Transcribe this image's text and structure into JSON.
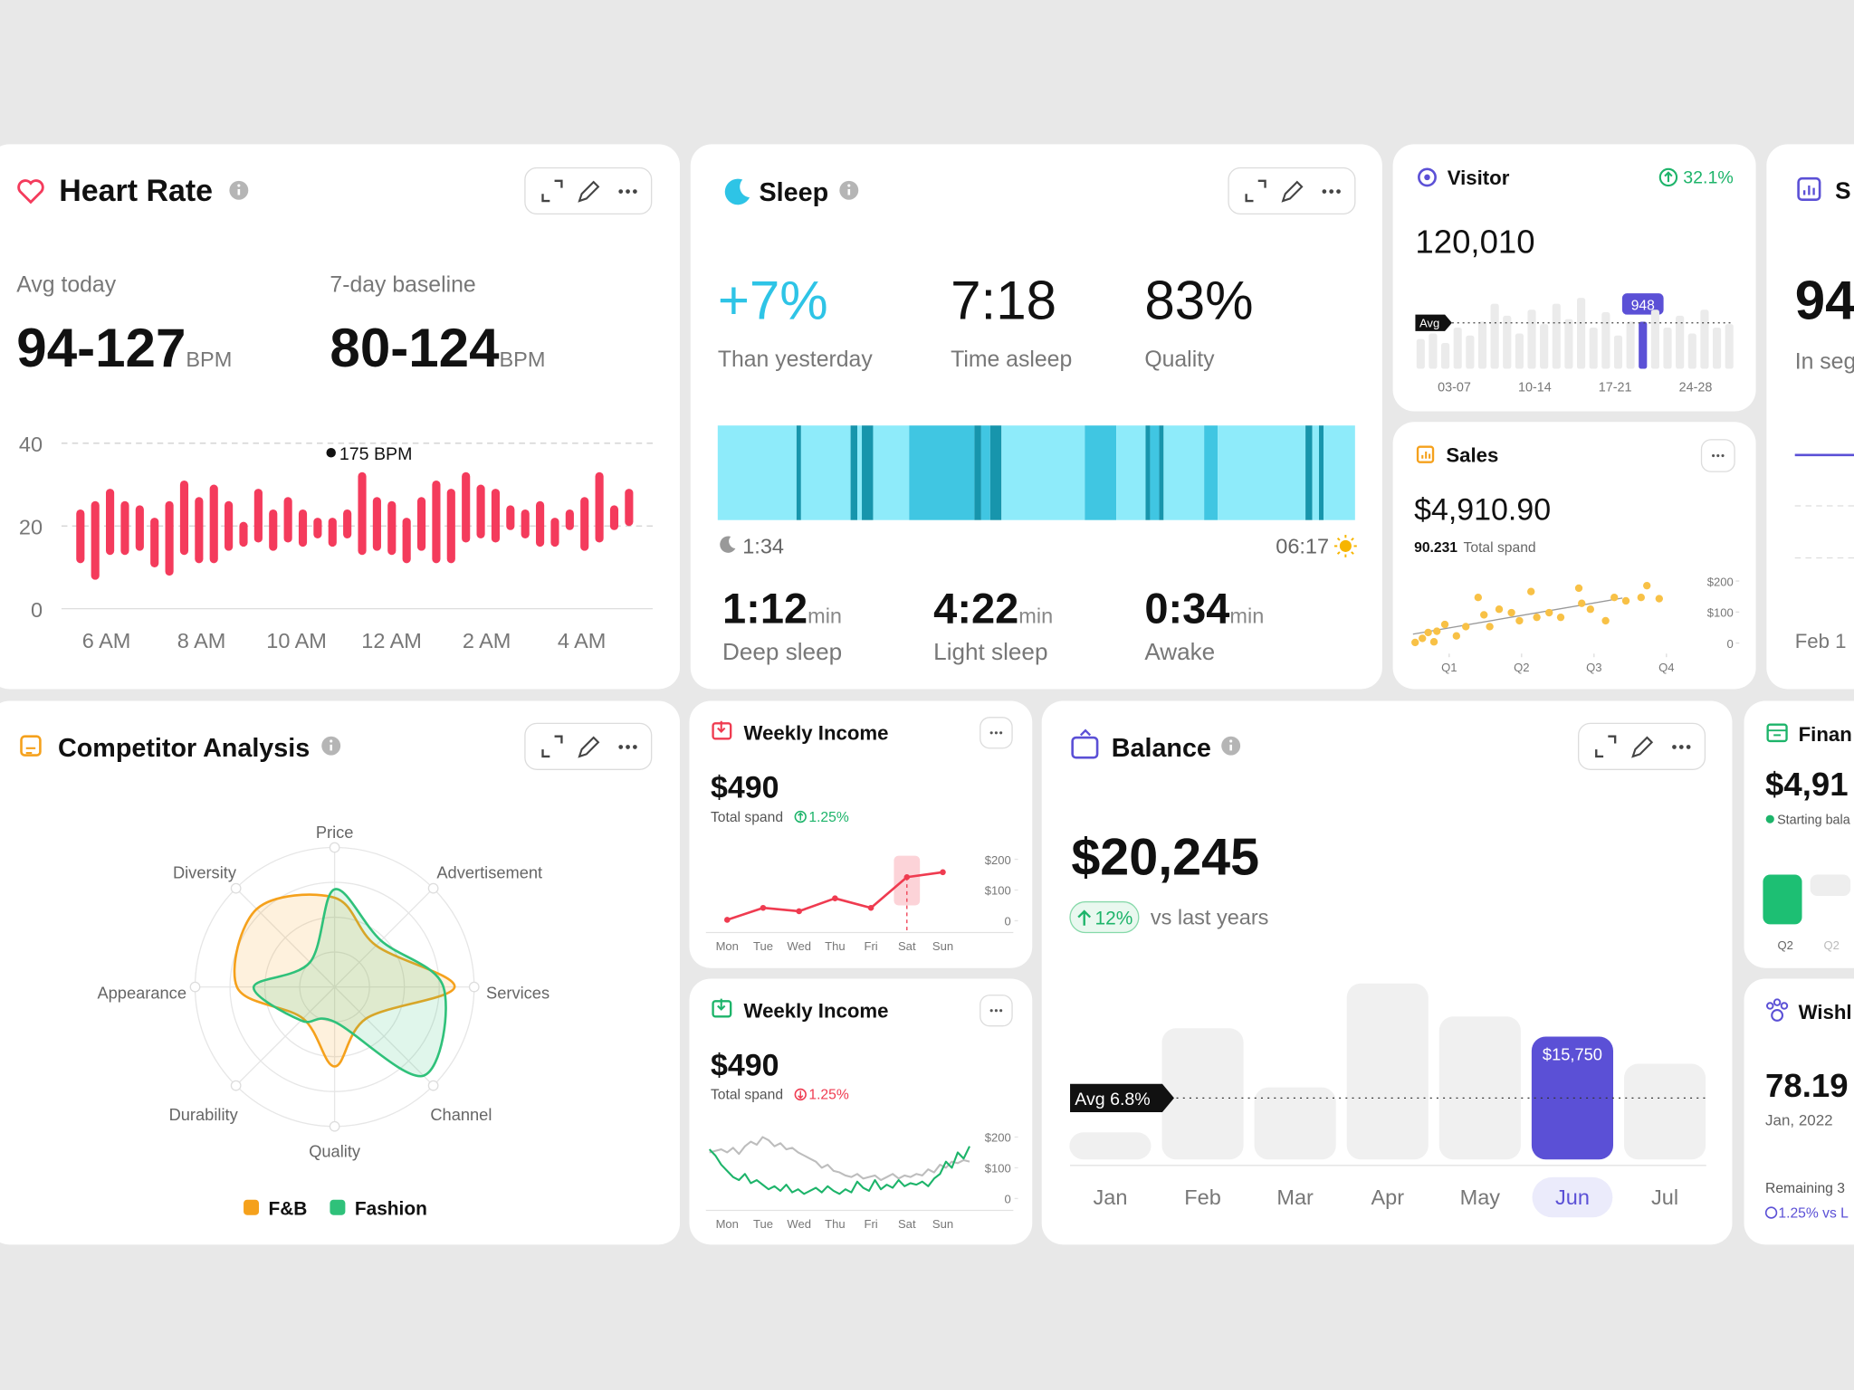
{
  "heart_rate": {
    "title": "Heart Rate",
    "stats": [
      {
        "label": "Avg today",
        "value": "94-127",
        "unit": "BPM"
      },
      {
        "label": "7-day baseline",
        "value": "80-124",
        "unit": "BPM"
      }
    ],
    "chart": {
      "type": "range_bar",
      "color": "#f43b5c",
      "annotation": "175 BPM",
      "x_labels": [
        "6 AM",
        "8 AM",
        "10 AM",
        "12 AM",
        "2 AM",
        "4 AM"
      ],
      "low": [
        11,
        7,
        13,
        13,
        14,
        10,
        8,
        13,
        11,
        11,
        14,
        15,
        16,
        14,
        16,
        15,
        17,
        15,
        17,
        13,
        14,
        13,
        11,
        14,
        11,
        11,
        16,
        17,
        16,
        19,
        17,
        15,
        15,
        19,
        14,
        16,
        19,
        20
      ],
      "high": [
        24,
        26,
        29,
        26,
        25,
        22,
        26,
        31,
        27,
        30,
        26,
        21,
        29,
        24,
        27,
        24,
        22,
        22,
        24,
        33,
        27,
        26,
        22,
        27,
        31,
        29,
        33,
        30,
        29,
        25,
        24,
        26,
        22,
        24,
        27,
        33,
        25,
        29
      ],
      "ylim": [
        0,
        40
      ],
      "yticks": [
        0,
        20,
        40
      ]
    }
  },
  "sleep": {
    "title": "Sleep",
    "stats": [
      {
        "value": "+7%",
        "label": "Than yesterday"
      },
      {
        "value": "7:18",
        "label": "Time asleep"
      },
      {
        "value": "83%",
        "label": "Quality"
      }
    ],
    "stages": [
      {
        "value": "1:12",
        "unit": "min",
        "label": "Deep sleep",
        "color": "#40c6e2"
      },
      {
        "value": "4:22",
        "unit": "min",
        "label": "Light sleep",
        "color": "#8eebfa"
      },
      {
        "value": "0:34",
        "unit": "min",
        "label": "Awake",
        "color": "#1795ac"
      }
    ],
    "chart": {
      "type": "hypnogram",
      "start": "1:34",
      "end": "06:17",
      "xlim": [
        0,
        283
      ],
      "segments": [
        {
          "stage": "Light sleep",
          "from": 0,
          "to": 35
        },
        {
          "stage": "Awake",
          "from": 35,
          "to": 37
        },
        {
          "stage": "Light sleep",
          "from": 37,
          "to": 59
        },
        {
          "stage": "Awake",
          "from": 59,
          "to": 62
        },
        {
          "stage": "Light sleep",
          "from": 62,
          "to": 64
        },
        {
          "stage": "Awake",
          "from": 64,
          "to": 69
        },
        {
          "stage": "Light sleep",
          "from": 69,
          "to": 85
        },
        {
          "stage": "Deep sleep",
          "from": 85,
          "to": 114
        },
        {
          "stage": "Awake",
          "from": 114,
          "to": 117
        },
        {
          "stage": "Deep sleep",
          "from": 117,
          "to": 121
        },
        {
          "stage": "Awake",
          "from": 121,
          "to": 126
        },
        {
          "stage": "Light sleep",
          "from": 126,
          "to": 163
        },
        {
          "stage": "Deep sleep",
          "from": 163,
          "to": 177
        },
        {
          "stage": "Light sleep",
          "from": 177,
          "to": 190
        },
        {
          "stage": "Awake",
          "from": 190,
          "to": 192
        },
        {
          "stage": "Deep sleep",
          "from": 192,
          "to": 196
        },
        {
          "stage": "Awake",
          "from": 196,
          "to": 198
        },
        {
          "stage": "Light sleep",
          "from": 198,
          "to": 216
        },
        {
          "stage": "Deep sleep",
          "from": 216,
          "to": 222
        },
        {
          "stage": "Light sleep",
          "from": 222,
          "to": 261
        },
        {
          "stage": "Awake",
          "from": 261,
          "to": 264
        },
        {
          "stage": "Light sleep",
          "from": 264,
          "to": 267
        },
        {
          "stage": "Awake",
          "from": 267,
          "to": 269
        },
        {
          "stage": "Light sleep",
          "from": 269,
          "to": 283
        }
      ]
    }
  },
  "visitor": {
    "title": "Visitor",
    "change": "32.1%",
    "value": "120,010",
    "chart": {
      "type": "bar",
      "color": "#ebebeb",
      "highlight_color": "#5b50d6",
      "highlight": 18,
      "avg": 925,
      "avg_label": "Avg",
      "x_labels": [
        "03-07",
        "10-14",
        "17-21",
        "24-28"
      ],
      "values": [
        600,
        710,
        520,
        830,
        670,
        950,
        1310,
        1070,
        710,
        1190,
        900,
        1310,
        1000,
        1430,
        830,
        1140,
        670,
        950,
        948,
        1190,
        830,
        1070,
        710,
        1190,
        830,
        900
      ],
      "ylim": [
        0,
        1500
      ]
    }
  },
  "sales": {
    "title": "Sales",
    "value": "$4,910.90",
    "sub_value": "90.231",
    "sub_label": "Total spand",
    "chart": {
      "type": "scatter",
      "color": "#f8c146",
      "x": [
        0.03,
        0.13,
        0.21,
        0.29,
        0.33,
        0.44,
        0.6,
        0.73,
        0.9,
        0.98,
        1.06,
        1.19,
        1.36,
        1.47,
        1.63,
        1.71,
        1.88,
        2.04,
        2.29,
        2.33,
        2.45,
        2.66,
        2.78,
        2.94,
        3.15,
        3.23,
        3.4
      ],
      "values": [
        2,
        15,
        34,
        4,
        38,
        60,
        23,
        53,
        147,
        91,
        53,
        109,
        98,
        72,
        166,
        83,
        98,
        83,
        177,
        128,
        109,
        72,
        147,
        136,
        147,
        185,
        143
      ],
      "xlim": [
        0,
        4
      ],
      "xticks": [
        {
          "value": 0.5,
          "label": "Q1"
        },
        {
          "value": 1.5,
          "label": "Q2"
        },
        {
          "value": 2.5,
          "label": "Q3"
        },
        {
          "value": 3.5,
          "label": "Q4"
        }
      ],
      "ylim": [
        -15,
        225
      ],
      "yticks": [
        {
          "value": 200,
          "label": "$200"
        },
        {
          "value": 100,
          "label": "$100"
        },
        0
      ]
    }
  },
  "competitor": {
    "title": "Competitor Analysis",
    "chart": {
      "type": "radar",
      "categories": [
        "Price",
        "Advertisement",
        "Services",
        "Channel",
        "Quality",
        "Durability",
        "Appearance",
        "Diversity"
      ],
      "rlim": [
        0,
        100
      ],
      "series": [
        {
          "name": "F&B",
          "color": "#f5a11c",
          "values": [
            64,
            42,
            86,
            32,
            57,
            32,
            70,
            79
          ]
        },
        {
          "name": "Fashion",
          "color": "#2fc17a",
          "values": [
            70,
            47,
            78,
            90,
            25,
            34,
            58,
            25
          ]
        }
      ]
    }
  },
  "weekly_income": [
    {
      "title": "Weekly Income",
      "value": "$490",
      "sub_label": "Total spand",
      "change": "1.25%",
      "trend": "up",
      "chart": {
        "type": "line",
        "categories": [
          "Mon",
          "Tue",
          "Wed",
          "Thu",
          "Fri",
          "Sat",
          "Sun"
        ],
        "highlight": 5,
        "ylim": [
          0,
          200
        ],
        "yticks": [
          {
            "value": 200,
            "label": "$200"
          },
          {
            "value": 100,
            "label": "$100"
          },
          0
        ],
        "series": [
          {
            "color": "#ef3b50",
            "values": [
              3,
              42,
              31,
              73,
              42,
              142,
              158
            ]
          }
        ]
      }
    },
    {
      "title": "Weekly Income",
      "value": "$490",
      "sub_label": "Total spand",
      "change": "1.25%",
      "trend": "down",
      "chart": {
        "type": "line",
        "categories": [
          "Mon",
          "Tue",
          "Wed",
          "Thu",
          "Fri",
          "Sat",
          "Sun"
        ],
        "ylim": [
          0,
          200
        ],
        "yticks": [
          {
            "value": 200,
            "label": "$200"
          },
          {
            "value": 100,
            "label": "$100"
          },
          0
        ],
        "series": [
          {
            "color": "#bdbdbd",
            "values": [
              150,
              155,
              160,
              150,
              165,
              145,
              170,
              185,
              175,
              200,
              190,
              170,
              180,
              160,
              165,
              150,
              140,
              130,
              120,
              100,
              110,
              90,
              85,
              75,
              70,
              80,
              65,
              70,
              75,
              60,
              70,
              80,
              65,
              75,
              70,
              80,
              75,
              95,
              85,
              110,
              100,
              120,
              115,
              125,
              120
            ]
          },
          {
            "color": "#1db46a",
            "values": [
              160,
              140,
              110,
              90,
              70,
              60,
              80,
              50,
              60,
              45,
              30,
              40,
              25,
              45,
              20,
              30,
              15,
              25,
              35,
              20,
              40,
              25,
              15,
              30,
              20,
              55,
              35,
              25,
              60,
              30,
              45,
              35,
              60,
              40,
              50,
              45,
              55,
              40,
              65,
              80,
              120,
              100,
              150,
              130,
              170
            ]
          }
        ]
      }
    }
  ],
  "balance": {
    "title": "Balance",
    "value": "$20,245",
    "change": "12%",
    "change_label": "vs last years",
    "avg_label": "Avg 6.8%",
    "chart": {
      "type": "bar",
      "categories": [
        "Jan",
        "Feb",
        "Mar",
        "Apr",
        "May",
        "Jun",
        "Jul"
      ],
      "values": [
        3480,
        16810,
        9240,
        22560,
        18320,
        15750,
        12260
      ],
      "value_labels": [
        null,
        null,
        null,
        null,
        null,
        "$15,750",
        null
      ],
      "ylim": [
        0,
        24000
      ],
      "highlight": 5,
      "color": "#f0f0f0",
      "highlight_color": "#5b50d6"
    }
  },
  "partial_cards": {
    "segments": {
      "title": "S",
      "value": "94",
      "label": "In seg",
      "date": "Feb 1"
    },
    "finance": {
      "title": "Finan",
      "value": "$4,91",
      "label": "Starting bala",
      "x_labels": [
        "Q2",
        "Q2"
      ]
    },
    "wishlist": {
      "title": "Wishl",
      "value": "78.19",
      "date": "Jan, 2022",
      "remaining": "Remaining 3",
      "change": "1.25% vs L"
    }
  }
}
